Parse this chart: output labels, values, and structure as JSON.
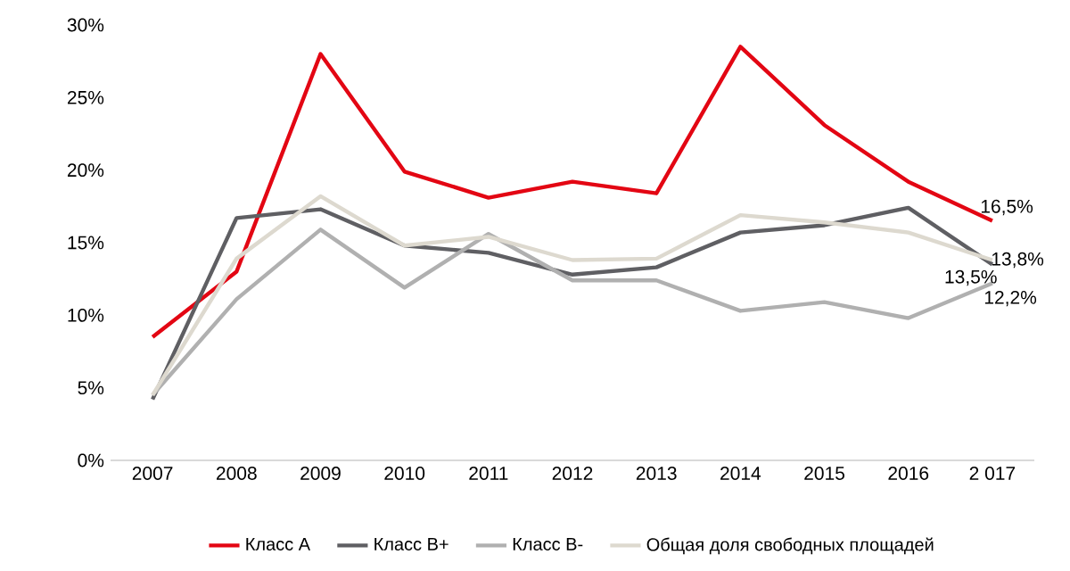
{
  "chart_data": {
    "type": "line",
    "categories": [
      "2007",
      "2008",
      "2009",
      "2010",
      "2011",
      "2012",
      "2013",
      "2014",
      "2015",
      "2016",
      "2 017"
    ],
    "ylim": [
      0,
      30
    ],
    "yticks": [
      {
        "value": 0,
        "label": "0%"
      },
      {
        "value": 5,
        "label": "5%"
      },
      {
        "value": 10,
        "label": "10%"
      },
      {
        "value": 15,
        "label": "15%"
      },
      {
        "value": 20,
        "label": "20%"
      },
      {
        "value": 25,
        "label": "25%"
      },
      {
        "value": 30,
        "label": "30%"
      }
    ],
    "grid": false,
    "legend": "bottom",
    "marker": "none",
    "line_style": "solid",
    "series": [
      {
        "name": "Класс А",
        "color": "#e30613",
        "values": [
          8.5,
          13.0,
          28.0,
          19.9,
          18.1,
          19.2,
          18.4,
          28.5,
          23.1,
          19.2,
          16.5
        ],
        "value_labels": [
          null,
          null,
          null,
          null,
          null,
          null,
          null,
          null,
          null,
          null,
          "16,5%"
        ]
      },
      {
        "name": "Класс В+",
        "color": "#5f5f63",
        "values": [
          4.2,
          16.7,
          17.3,
          14.8,
          14.3,
          12.8,
          13.3,
          15.7,
          16.2,
          17.4,
          13.5
        ],
        "value_labels": [
          null,
          null,
          null,
          null,
          null,
          null,
          null,
          null,
          null,
          null,
          "13,5%"
        ]
      },
      {
        "name": "Класс В-",
        "color": "#b0b0b0",
        "values": [
          4.5,
          11.1,
          15.9,
          11.9,
          15.6,
          12.4,
          12.4,
          10.3,
          10.9,
          9.8,
          12.2
        ],
        "value_labels": [
          null,
          null,
          null,
          null,
          null,
          null,
          null,
          null,
          null,
          null,
          "12,2%"
        ]
      },
      {
        "name": "Общая доля свободных площадей",
        "color": "#ddd9cf",
        "values": [
          4.5,
          13.9,
          18.2,
          14.8,
          15.4,
          13.8,
          13.9,
          16.9,
          16.4,
          15.7,
          13.8
        ],
        "value_labels": [
          null,
          null,
          null,
          null,
          null,
          null,
          null,
          null,
          null,
          null,
          "13,8%"
        ]
      }
    ]
  }
}
